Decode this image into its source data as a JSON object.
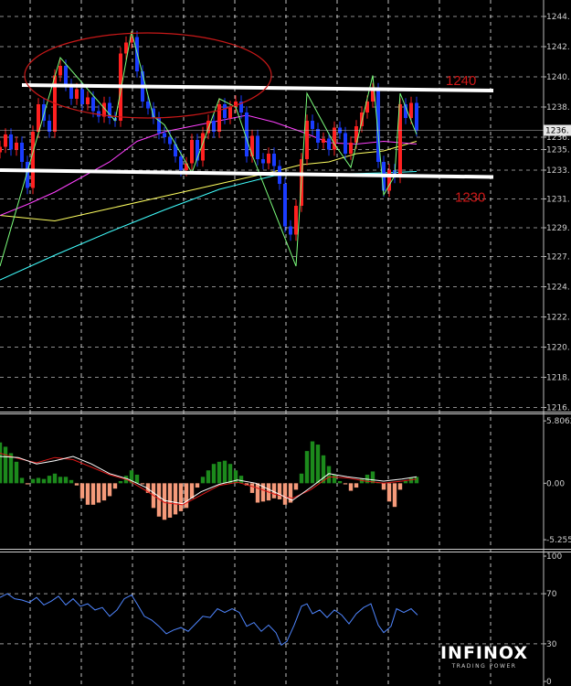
{
  "logo": {
    "main": "INFINOX",
    "sub": "TRADING POWER"
  },
  "colors": {
    "background": "#000000",
    "grid": "#ffffff",
    "bull_candle": "#ff2020",
    "bear_candle": "#1a3cff",
    "zigzag": "#7cff7c",
    "ma_fast": "#ff40ff",
    "ma_mid": "#ffff60",
    "ma_slow": "#40ffff",
    "level_line": "#ffffff",
    "level_label": "#d01818",
    "ellipse": "#c81818",
    "macd_pos": "#1c8a1c",
    "macd_neg": "#f59a7a",
    "macd_main": "#ffffff",
    "macd_signal": "#e01818",
    "rsi": "#4f86ff",
    "current_price": "#c0c0c0"
  },
  "chart_data": [
    {
      "type": "candlestick",
      "panel": "price",
      "y_ticks": [
        "1244.",
        "1242.",
        "1240.",
        "1238.",
        "1236.",
        "1235.",
        "1233.",
        "1231.",
        "1229.",
        "1227.",
        "1224.",
        "1222.",
        "1220.",
        "1218.",
        "1216."
      ],
      "y_tick_values": [
        1244.6,
        1242.4,
        1240.2,
        1238.0,
        1235.8,
        1234.9,
        1233.4,
        1231.3,
        1229.2,
        1227.1,
        1224.9,
        1222.7,
        1220.5,
        1218.3,
        1216.1
      ],
      "ylim": [
        1215.8,
        1245.8
      ],
      "current_price_label": "1236.",
      "current_price": 1236.3,
      "levels": [
        {
          "label": "1240",
          "start_value": 1239.6,
          "end_value": 1239.2
        },
        {
          "label": "1230",
          "start_value": 1233.4,
          "end_value": 1232.9
        }
      ],
      "x_range": [
        0,
        460
      ],
      "closes": [
        [
          0,
          1235.1
        ],
        [
          6,
          1236.0
        ],
        [
          12,
          1234.9
        ],
        [
          18,
          1235.4
        ],
        [
          24,
          1234.0
        ],
        [
          30,
          1232.1
        ],
        [
          36,
          1236.2
        ],
        [
          42,
          1238.2
        ],
        [
          48,
          1237.0
        ],
        [
          54,
          1236.2
        ],
        [
          60,
          1240.3
        ],
        [
          66,
          1241.0
        ],
        [
          72,
          1239.6
        ],
        [
          78,
          1238.6
        ],
        [
          84,
          1239.3
        ],
        [
          90,
          1238.2
        ],
        [
          96,
          1238.7
        ],
        [
          102,
          1237.7
        ],
        [
          108,
          1237.3
        ],
        [
          114,
          1238.3
        ],
        [
          120,
          1237.2
        ],
        [
          126,
          1237.0
        ],
        [
          132,
          1241.9
        ],
        [
          138,
          1242.7
        ],
        [
          144,
          1243.1
        ],
        [
          150,
          1240.6
        ],
        [
          156,
          1238.4
        ],
        [
          162,
          1237.9
        ],
        [
          168,
          1237.2
        ],
        [
          174,
          1236.1
        ],
        [
          180,
          1235.8
        ],
        [
          186,
          1235.3
        ],
        [
          192,
          1234.4
        ],
        [
          198,
          1233.4
        ],
        [
          204,
          1233.9
        ],
        [
          210,
          1235.6
        ],
        [
          216,
          1234.1
        ],
        [
          222,
          1236.1
        ],
        [
          228,
          1237.0
        ],
        [
          234,
          1236.2
        ],
        [
          240,
          1238.2
        ],
        [
          246,
          1237.2
        ],
        [
          252,
          1238.0
        ],
        [
          258,
          1238.4
        ],
        [
          264,
          1237.6
        ],
        [
          270,
          1234.4
        ],
        [
          276,
          1235.9
        ],
        [
          282,
          1234.2
        ],
        [
          288,
          1233.9
        ],
        [
          294,
          1234.6
        ],
        [
          300,
          1233.7
        ],
        [
          306,
          1232.4
        ],
        [
          312,
          1229.3
        ],
        [
          318,
          1228.7
        ],
        [
          324,
          1230.8
        ],
        [
          330,
          1234.2
        ],
        [
          336,
          1237.0
        ],
        [
          342,
          1236.4
        ],
        [
          348,
          1235.4
        ],
        [
          354,
          1235.7
        ],
        [
          360,
          1234.9
        ],
        [
          366,
          1236.5
        ],
        [
          372,
          1236.1
        ],
        [
          378,
          1234.6
        ],
        [
          384,
          1235.4
        ],
        [
          390,
          1236.6
        ],
        [
          396,
          1237.6
        ],
        [
          402,
          1238.4
        ],
        [
          408,
          1239.3
        ],
        [
          414,
          1234.0
        ],
        [
          420,
          1231.9
        ],
        [
          426,
          1233.4
        ],
        [
          432,
          1232.9
        ],
        [
          438,
          1238.2
        ],
        [
          444,
          1237.2
        ],
        [
          450,
          1238.3
        ],
        [
          456,
          1236.3
        ]
      ],
      "zigzag": [
        [
          0,
          1226.4
        ],
        [
          66,
          1241.6
        ],
        [
          126,
          1237.0
        ],
        [
          144,
          1243.5
        ],
        [
          168,
          1237.3
        ],
        [
          180,
          1236.7
        ],
        [
          210,
          1233.2
        ],
        [
          240,
          1238.6
        ],
        [
          258,
          1238.0
        ],
        [
          276,
          1234.5
        ],
        [
          324,
          1226.4
        ],
        [
          336,
          1239.0
        ],
        [
          366,
          1235.3
        ],
        [
          384,
          1233.6
        ],
        [
          408,
          1240.3
        ],
        [
          420,
          1231.6
        ],
        [
          432,
          1233.0
        ],
        [
          438,
          1239.0
        ],
        [
          456,
          1236.0
        ]
      ],
      "ma_slow": [
        [
          0,
          1225.4
        ],
        [
          60,
          1227.2
        ],
        [
          120,
          1228.9
        ],
        [
          180,
          1230.5
        ],
        [
          240,
          1232.0
        ],
        [
          300,
          1233.0
        ],
        [
          360,
          1233.1
        ],
        [
          420,
          1233.2
        ],
        [
          456,
          1233.3
        ]
      ],
      "ma_mid": [
        [
          0,
          1230.1
        ],
        [
          60,
          1229.7
        ],
        [
          120,
          1230.6
        ],
        [
          180,
          1231.5
        ],
        [
          240,
          1232.4
        ],
        [
          300,
          1233.3
        ],
        [
          330,
          1233.8
        ],
        [
          360,
          1234.0
        ],
        [
          390,
          1234.6
        ],
        [
          420,
          1234.8
        ],
        [
          456,
          1235.5
        ]
      ],
      "ma_fast": [
        [
          0,
          1230.1
        ],
        [
          30,
          1230.9
        ],
        [
          60,
          1231.8
        ],
        [
          90,
          1232.9
        ],
        [
          120,
          1234.0
        ],
        [
          150,
          1235.5
        ],
        [
          180,
          1236.2
        ],
        [
          210,
          1236.6
        ],
        [
          240,
          1237.0
        ],
        [
          270,
          1237.4
        ],
        [
          300,
          1236.9
        ],
        [
          330,
          1236.2
        ],
        [
          360,
          1235.4
        ],
        [
          390,
          1235.3
        ],
        [
          420,
          1235.5
        ],
        [
          456,
          1235.3
        ]
      ],
      "ellipse": {
        "x_center": 162,
        "value_center": 1240.3,
        "x_radius": 135,
        "value_span": 3.1
      }
    },
    {
      "type": "histogram",
      "panel": "macd",
      "y_ticks": [
        "5.8062",
        "0.00",
        "-5.255"
      ],
      "y_tick_values": [
        5.8062,
        0.0,
        -5.255
      ],
      "ylim": [
        -6.1,
        6.5
      ],
      "x_range": [
        0,
        460
      ],
      "values": [
        [
          0,
          3.8
        ],
        [
          6,
          3.4
        ],
        [
          12,
          2.8
        ],
        [
          18,
          2.0
        ],
        [
          24,
          0.5
        ],
        [
          30,
          -0.1
        ],
        [
          36,
          0.4
        ],
        [
          42,
          0.5
        ],
        [
          48,
          0.4
        ],
        [
          54,
          0.7
        ],
        [
          60,
          0.9
        ],
        [
          66,
          0.6
        ],
        [
          72,
          0.6
        ],
        [
          78,
          0.3
        ],
        [
          84,
          -0.2
        ],
        [
          90,
          -1.4
        ],
        [
          96,
          -2.0
        ],
        [
          102,
          -2.0
        ],
        [
          108,
          -1.8
        ],
        [
          114,
          -1.6
        ],
        [
          120,
          -1.2
        ],
        [
          126,
          -0.5
        ],
        [
          132,
          0.2
        ],
        [
          138,
          0.7
        ],
        [
          144,
          1.2
        ],
        [
          150,
          0.8
        ],
        [
          156,
          -0.1
        ],
        [
          162,
          -0.9
        ],
        [
          168,
          -2.3
        ],
        [
          174,
          -3.1
        ],
        [
          180,
          -3.4
        ],
        [
          186,
          -3.2
        ],
        [
          192,
          -2.9
        ],
        [
          198,
          -2.6
        ],
        [
          204,
          -2.3
        ],
        [
          210,
          -1.4
        ],
        [
          216,
          -0.4
        ],
        [
          222,
          0.6
        ],
        [
          228,
          1.2
        ],
        [
          234,
          1.8
        ],
        [
          240,
          2.0
        ],
        [
          246,
          2.1
        ],
        [
          252,
          1.8
        ],
        [
          258,
          1.2
        ],
        [
          264,
          0.7
        ],
        [
          270,
          -0.2
        ],
        [
          276,
          -0.9
        ],
        [
          282,
          -1.8
        ],
        [
          288,
          -1.7
        ],
        [
          294,
          -1.6
        ],
        [
          300,
          -1.4
        ],
        [
          306,
          -1.5
        ],
        [
          312,
          -2.0
        ],
        [
          318,
          -1.8
        ],
        [
          324,
          -0.6
        ],
        [
          330,
          0.9
        ],
        [
          336,
          3.0
        ],
        [
          342,
          3.9
        ],
        [
          348,
          3.6
        ],
        [
          354,
          2.6
        ],
        [
          360,
          1.6
        ],
        [
          366,
          0.8
        ],
        [
          372,
          0.2
        ],
        [
          378,
          -0.1
        ],
        [
          384,
          -0.7
        ],
        [
          390,
          -0.4
        ],
        [
          396,
          0.4
        ],
        [
          402,
          0.8
        ],
        [
          408,
          1.1
        ],
        [
          414,
          0.1
        ],
        [
          420,
          -0.6
        ],
        [
          426,
          -1.7
        ],
        [
          432,
          -2.2
        ],
        [
          438,
          -0.6
        ],
        [
          444,
          0.2
        ],
        [
          450,
          0.5
        ],
        [
          456,
          0.6
        ]
      ],
      "main": [
        [
          0,
          2.5
        ],
        [
          20,
          2.4
        ],
        [
          40,
          1.8
        ],
        [
          60,
          2.1
        ],
        [
          80,
          2.5
        ],
        [
          100,
          1.8
        ],
        [
          120,
          0.9
        ],
        [
          140,
          0.4
        ],
        [
          160,
          -0.4
        ],
        [
          180,
          -1.6
        ],
        [
          200,
          -1.9
        ],
        [
          220,
          -0.8
        ],
        [
          240,
          -0.1
        ],
        [
          260,
          0.3
        ],
        [
          280,
          0.0
        ],
        [
          300,
          -0.8
        ],
        [
          320,
          -1.6
        ],
        [
          340,
          -0.4
        ],
        [
          360,
          0.9
        ],
        [
          380,
          0.6
        ],
        [
          400,
          0.4
        ],
        [
          420,
          0.2
        ],
        [
          440,
          0.4
        ],
        [
          456,
          0.6
        ]
      ],
      "signal": [
        [
          0,
          2.8
        ],
        [
          20,
          2.3
        ],
        [
          40,
          1.9
        ],
        [
          60,
          2.4
        ],
        [
          80,
          2.2
        ],
        [
          100,
          1.5
        ],
        [
          120,
          0.8
        ],
        [
          140,
          0.3
        ],
        [
          160,
          -0.7
        ],
        [
          180,
          -1.8
        ],
        [
          200,
          -2.0
        ],
        [
          220,
          -1.1
        ],
        [
          240,
          -0.2
        ],
        [
          260,
          0.1
        ],
        [
          280,
          -0.4
        ],
        [
          300,
          -1.0
        ],
        [
          320,
          -1.4
        ],
        [
          340,
          -0.6
        ],
        [
          360,
          0.6
        ],
        [
          380,
          0.5
        ],
        [
          400,
          0.2
        ],
        [
          420,
          0.0
        ],
        [
          440,
          0.2
        ],
        [
          456,
          0.4
        ]
      ]
    },
    {
      "type": "line",
      "panel": "rsi",
      "y_ticks": [
        "100",
        "70",
        "30",
        "0"
      ],
      "y_tick_values": [
        100,
        70,
        30,
        0
      ],
      "ylim": [
        0,
        100
      ],
      "x_range": [
        0,
        460
      ],
      "values": [
        [
          0,
          67
        ],
        [
          8,
          70
        ],
        [
          16,
          66
        ],
        [
          24,
          65
        ],
        [
          32,
          63
        ],
        [
          40,
          67
        ],
        [
          48,
          61
        ],
        [
          56,
          64
        ],
        [
          64,
          68
        ],
        [
          72,
          61
        ],
        [
          80,
          66
        ],
        [
          88,
          60
        ],
        [
          96,
          62
        ],
        [
          104,
          57
        ],
        [
          112,
          59
        ],
        [
          120,
          52
        ],
        [
          128,
          57
        ],
        [
          136,
          66
        ],
        [
          144,
          69
        ],
        [
          150,
          62
        ],
        [
          158,
          52
        ],
        [
          166,
          49
        ],
        [
          174,
          44
        ],
        [
          182,
          38
        ],
        [
          190,
          41
        ],
        [
          198,
          43
        ],
        [
          206,
          40
        ],
        [
          214,
          46
        ],
        [
          222,
          52
        ],
        [
          230,
          51
        ],
        [
          238,
          58
        ],
        [
          246,
          55
        ],
        [
          254,
          58
        ],
        [
          262,
          55
        ],
        [
          270,
          44
        ],
        [
          278,
          47
        ],
        [
          286,
          40
        ],
        [
          294,
          45
        ],
        [
          302,
          39
        ],
        [
          308,
          29
        ],
        [
          314,
          32
        ],
        [
          322,
          45
        ],
        [
          330,
          60
        ],
        [
          336,
          62
        ],
        [
          342,
          54
        ],
        [
          350,
          57
        ],
        [
          358,
          51
        ],
        [
          366,
          57
        ],
        [
          374,
          53
        ],
        [
          382,
          46
        ],
        [
          390,
          54
        ],
        [
          398,
          59
        ],
        [
          406,
          62
        ],
        [
          414,
          45
        ],
        [
          420,
          39
        ],
        [
          428,
          44
        ],
        [
          434,
          58
        ],
        [
          442,
          55
        ],
        [
          450,
          58
        ],
        [
          457,
          53
        ]
      ]
    }
  ]
}
